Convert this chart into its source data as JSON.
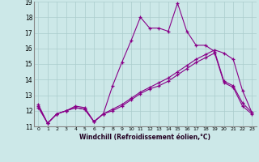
{
  "xlabel": "Windchill (Refroidissement éolien,°C)",
  "background_color": "#cce8e8",
  "line_color": "#880088",
  "grid_color": "#aacccc",
  "ylim": [
    11,
    19
  ],
  "xlim": [
    -0.5,
    23.5
  ],
  "yticks": [
    11,
    12,
    13,
    14,
    15,
    16,
    17,
    18,
    19
  ],
  "xticks": [
    0,
    1,
    2,
    3,
    4,
    5,
    6,
    7,
    8,
    9,
    10,
    11,
    12,
    13,
    14,
    15,
    16,
    17,
    18,
    19,
    20,
    21,
    22,
    23
  ],
  "line1_x": [
    0,
    1,
    2,
    3,
    4,
    5,
    6,
    7,
    8,
    9,
    10,
    11,
    12,
    13,
    14,
    15,
    16,
    17,
    18,
    19,
    20,
    21,
    22,
    23
  ],
  "line1_y": [
    12.4,
    11.2,
    11.8,
    12.0,
    12.3,
    12.2,
    11.3,
    11.8,
    13.6,
    15.1,
    16.5,
    18.0,
    17.3,
    17.3,
    17.1,
    18.9,
    17.1,
    16.2,
    16.2,
    15.8,
    13.9,
    13.6,
    12.5,
    11.9
  ],
  "line2_x": [
    0,
    1,
    2,
    3,
    4,
    5,
    6,
    7,
    8,
    9,
    10,
    11,
    12,
    13,
    14,
    15,
    16,
    17,
    18,
    19,
    20,
    21,
    22,
    23
  ],
  "line2_y": [
    12.2,
    11.2,
    11.8,
    12.0,
    12.2,
    12.1,
    11.3,
    11.8,
    12.1,
    12.4,
    12.8,
    13.2,
    13.5,
    13.8,
    14.1,
    14.5,
    14.9,
    15.3,
    15.6,
    15.9,
    15.7,
    15.3,
    13.3,
    11.9
  ],
  "line3_x": [
    0,
    1,
    2,
    3,
    4,
    5,
    6,
    7,
    8,
    9,
    10,
    11,
    12,
    13,
    14,
    15,
    16,
    17,
    18,
    19,
    20,
    21,
    22,
    23
  ],
  "line3_y": [
    12.3,
    11.2,
    11.8,
    12.0,
    12.2,
    12.1,
    11.3,
    11.8,
    12.0,
    12.3,
    12.7,
    13.1,
    13.4,
    13.6,
    13.9,
    14.3,
    14.7,
    15.1,
    15.4,
    15.7,
    13.8,
    13.5,
    12.3,
    11.8
  ]
}
